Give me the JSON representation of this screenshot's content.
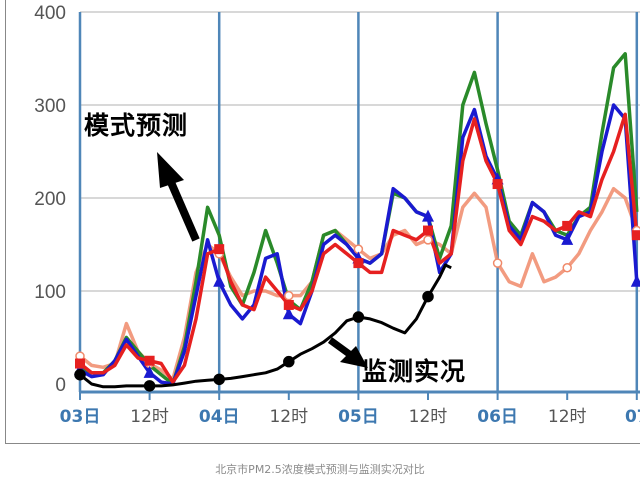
{
  "caption": "北京市PM2.5浓度模式预测与监测实况对比",
  "annotations": {
    "model": "模式预测",
    "observed": "监测实况"
  },
  "chart_data": {
    "type": "line",
    "title": "",
    "xlabel": "",
    "ylabel": "",
    "ylim": [
      -15,
      410
    ],
    "xlim_hours": [
      0,
      96
    ],
    "grid": true,
    "yticks": [
      0,
      100,
      200,
      300,
      400
    ],
    "xticks": [
      {
        "hour": 0,
        "label": "03日",
        "day": true
      },
      {
        "hour": 12,
        "label": "12时",
        "day": false
      },
      {
        "hour": 24,
        "label": "04日",
        "day": true
      },
      {
        "hour": 36,
        "label": "12时",
        "day": false
      },
      {
        "hour": 48,
        "label": "05日",
        "day": true
      },
      {
        "hour": 60,
        "label": "12时",
        "day": false
      },
      {
        "hour": 72,
        "label": "06日",
        "day": true
      },
      {
        "hour": 84,
        "label": "12时",
        "day": false
      },
      {
        "hour": 96,
        "label": "07",
        "day": true
      }
    ],
    "colors": {
      "day_line": "#4f86b8",
      "day_label": "#3d78b0",
      "hour_label": "#555555",
      "grid": "#cccccc"
    },
    "series": [
      {
        "color": "#f08a6a",
        "marker": "circle",
        "x": [
          0,
          2,
          4,
          6,
          8,
          10,
          12,
          14,
          16,
          18,
          20,
          22,
          24,
          26,
          28,
          30,
          32,
          34,
          36,
          38,
          40,
          42,
          44,
          46,
          48,
          50,
          52,
          54,
          56,
          58,
          60,
          62,
          64,
          66,
          68,
          70,
          72,
          74,
          76,
          78,
          80,
          82,
          84,
          86,
          88,
          90,
          92,
          94,
          96
        ],
        "y": [
          30,
          20,
          18,
          22,
          65,
          35,
          22,
          15,
          5,
          50,
          120,
          150,
          140,
          115,
          95,
          100,
          100,
          95,
          95,
          95,
          110,
          160,
          165,
          155,
          145,
          135,
          140,
          160,
          165,
          150,
          155,
          150,
          140,
          190,
          205,
          190,
          130,
          110,
          105,
          140,
          110,
          115,
          125,
          140,
          165,
          185,
          210,
          200,
          165
        ]
      },
      {
        "color": "#2a8a2a",
        "marker": "none",
        "x": [
          0,
          2,
          4,
          6,
          8,
          10,
          12,
          14,
          16,
          18,
          20,
          22,
          24,
          26,
          28,
          30,
          32,
          34,
          36,
          38,
          40,
          42,
          44,
          46,
          48,
          50,
          52,
          54,
          56,
          58,
          60,
          62,
          64,
          66,
          68,
          70,
          72,
          74,
          76,
          78,
          80,
          82,
          84,
          86,
          88,
          90,
          92,
          94,
          96
        ],
        "y": [
          18,
          12,
          12,
          25,
          50,
          35,
          20,
          10,
          0,
          40,
          110,
          190,
          160,
          105,
          85,
          120,
          165,
          130,
          90,
          80,
          110,
          160,
          165,
          150,
          135,
          130,
          140,
          205,
          200,
          185,
          180,
          135,
          170,
          300,
          335,
          280,
          230,
          175,
          160,
          195,
          185,
          165,
          160,
          180,
          190,
          270,
          340,
          355,
          185
        ]
      },
      {
        "color": "#1a1ad0",
        "marker": "triangle",
        "x": [
          0,
          2,
          4,
          6,
          8,
          10,
          12,
          14,
          16,
          18,
          20,
          22,
          24,
          26,
          28,
          30,
          32,
          34,
          36,
          38,
          40,
          42,
          44,
          46,
          48,
          50,
          52,
          54,
          56,
          58,
          60,
          62,
          64,
          66,
          68,
          70,
          72,
          74,
          76,
          78,
          80,
          82,
          84,
          86,
          88,
          90,
          92,
          94,
          96
        ],
        "y": [
          15,
          8,
          10,
          25,
          48,
          30,
          12,
          2,
          0,
          35,
          95,
          155,
          110,
          85,
          70,
          85,
          135,
          140,
          75,
          65,
          100,
          150,
          160,
          150,
          135,
          130,
          140,
          210,
          200,
          185,
          180,
          120,
          140,
          265,
          295,
          245,
          220,
          170,
          155,
          195,
          185,
          160,
          155,
          180,
          185,
          250,
          300,
          285,
          110
        ]
      },
      {
        "color": "#e62020",
        "marker": "square",
        "x": [
          0,
          2,
          4,
          6,
          8,
          10,
          12,
          14,
          16,
          18,
          20,
          22,
          24,
          26,
          28,
          30,
          32,
          34,
          36,
          38,
          40,
          42,
          44,
          46,
          48,
          50,
          52,
          54,
          56,
          58,
          60,
          62,
          64,
          66,
          68,
          70,
          72,
          74,
          76,
          78,
          80,
          82,
          84,
          86,
          88,
          90,
          92,
          94,
          96
        ],
        "y": [
          22,
          12,
          12,
          20,
          42,
          28,
          25,
          22,
          2,
          20,
          70,
          140,
          145,
          110,
          85,
          80,
          115,
          100,
          85,
          80,
          100,
          140,
          150,
          140,
          130,
          120,
          120,
          165,
          160,
          155,
          165,
          130,
          140,
          240,
          285,
          240,
          215,
          165,
          150,
          180,
          175,
          165,
          170,
          185,
          180,
          220,
          250,
          290,
          160
        ]
      },
      {
        "color": "#000000",
        "marker": "circle",
        "x": [
          0,
          2,
          4,
          6,
          8,
          10,
          12,
          14,
          16,
          18,
          20,
          22,
          24,
          26,
          28,
          30,
          32,
          34,
          36,
          38,
          40,
          42,
          44,
          46,
          48,
          50,
          52,
          54,
          56,
          58,
          60,
          62,
          63,
          64
        ],
        "y": [
          10,
          0,
          -3,
          -3,
          -2,
          -2,
          -2,
          -2,
          -1,
          1,
          3,
          4,
          5,
          6,
          8,
          10,
          12,
          16,
          24,
          32,
          38,
          45,
          55,
          68,
          72,
          70,
          66,
          60,
          55,
          70,
          94,
          115,
          128,
          125
        ]
      }
    ]
  }
}
